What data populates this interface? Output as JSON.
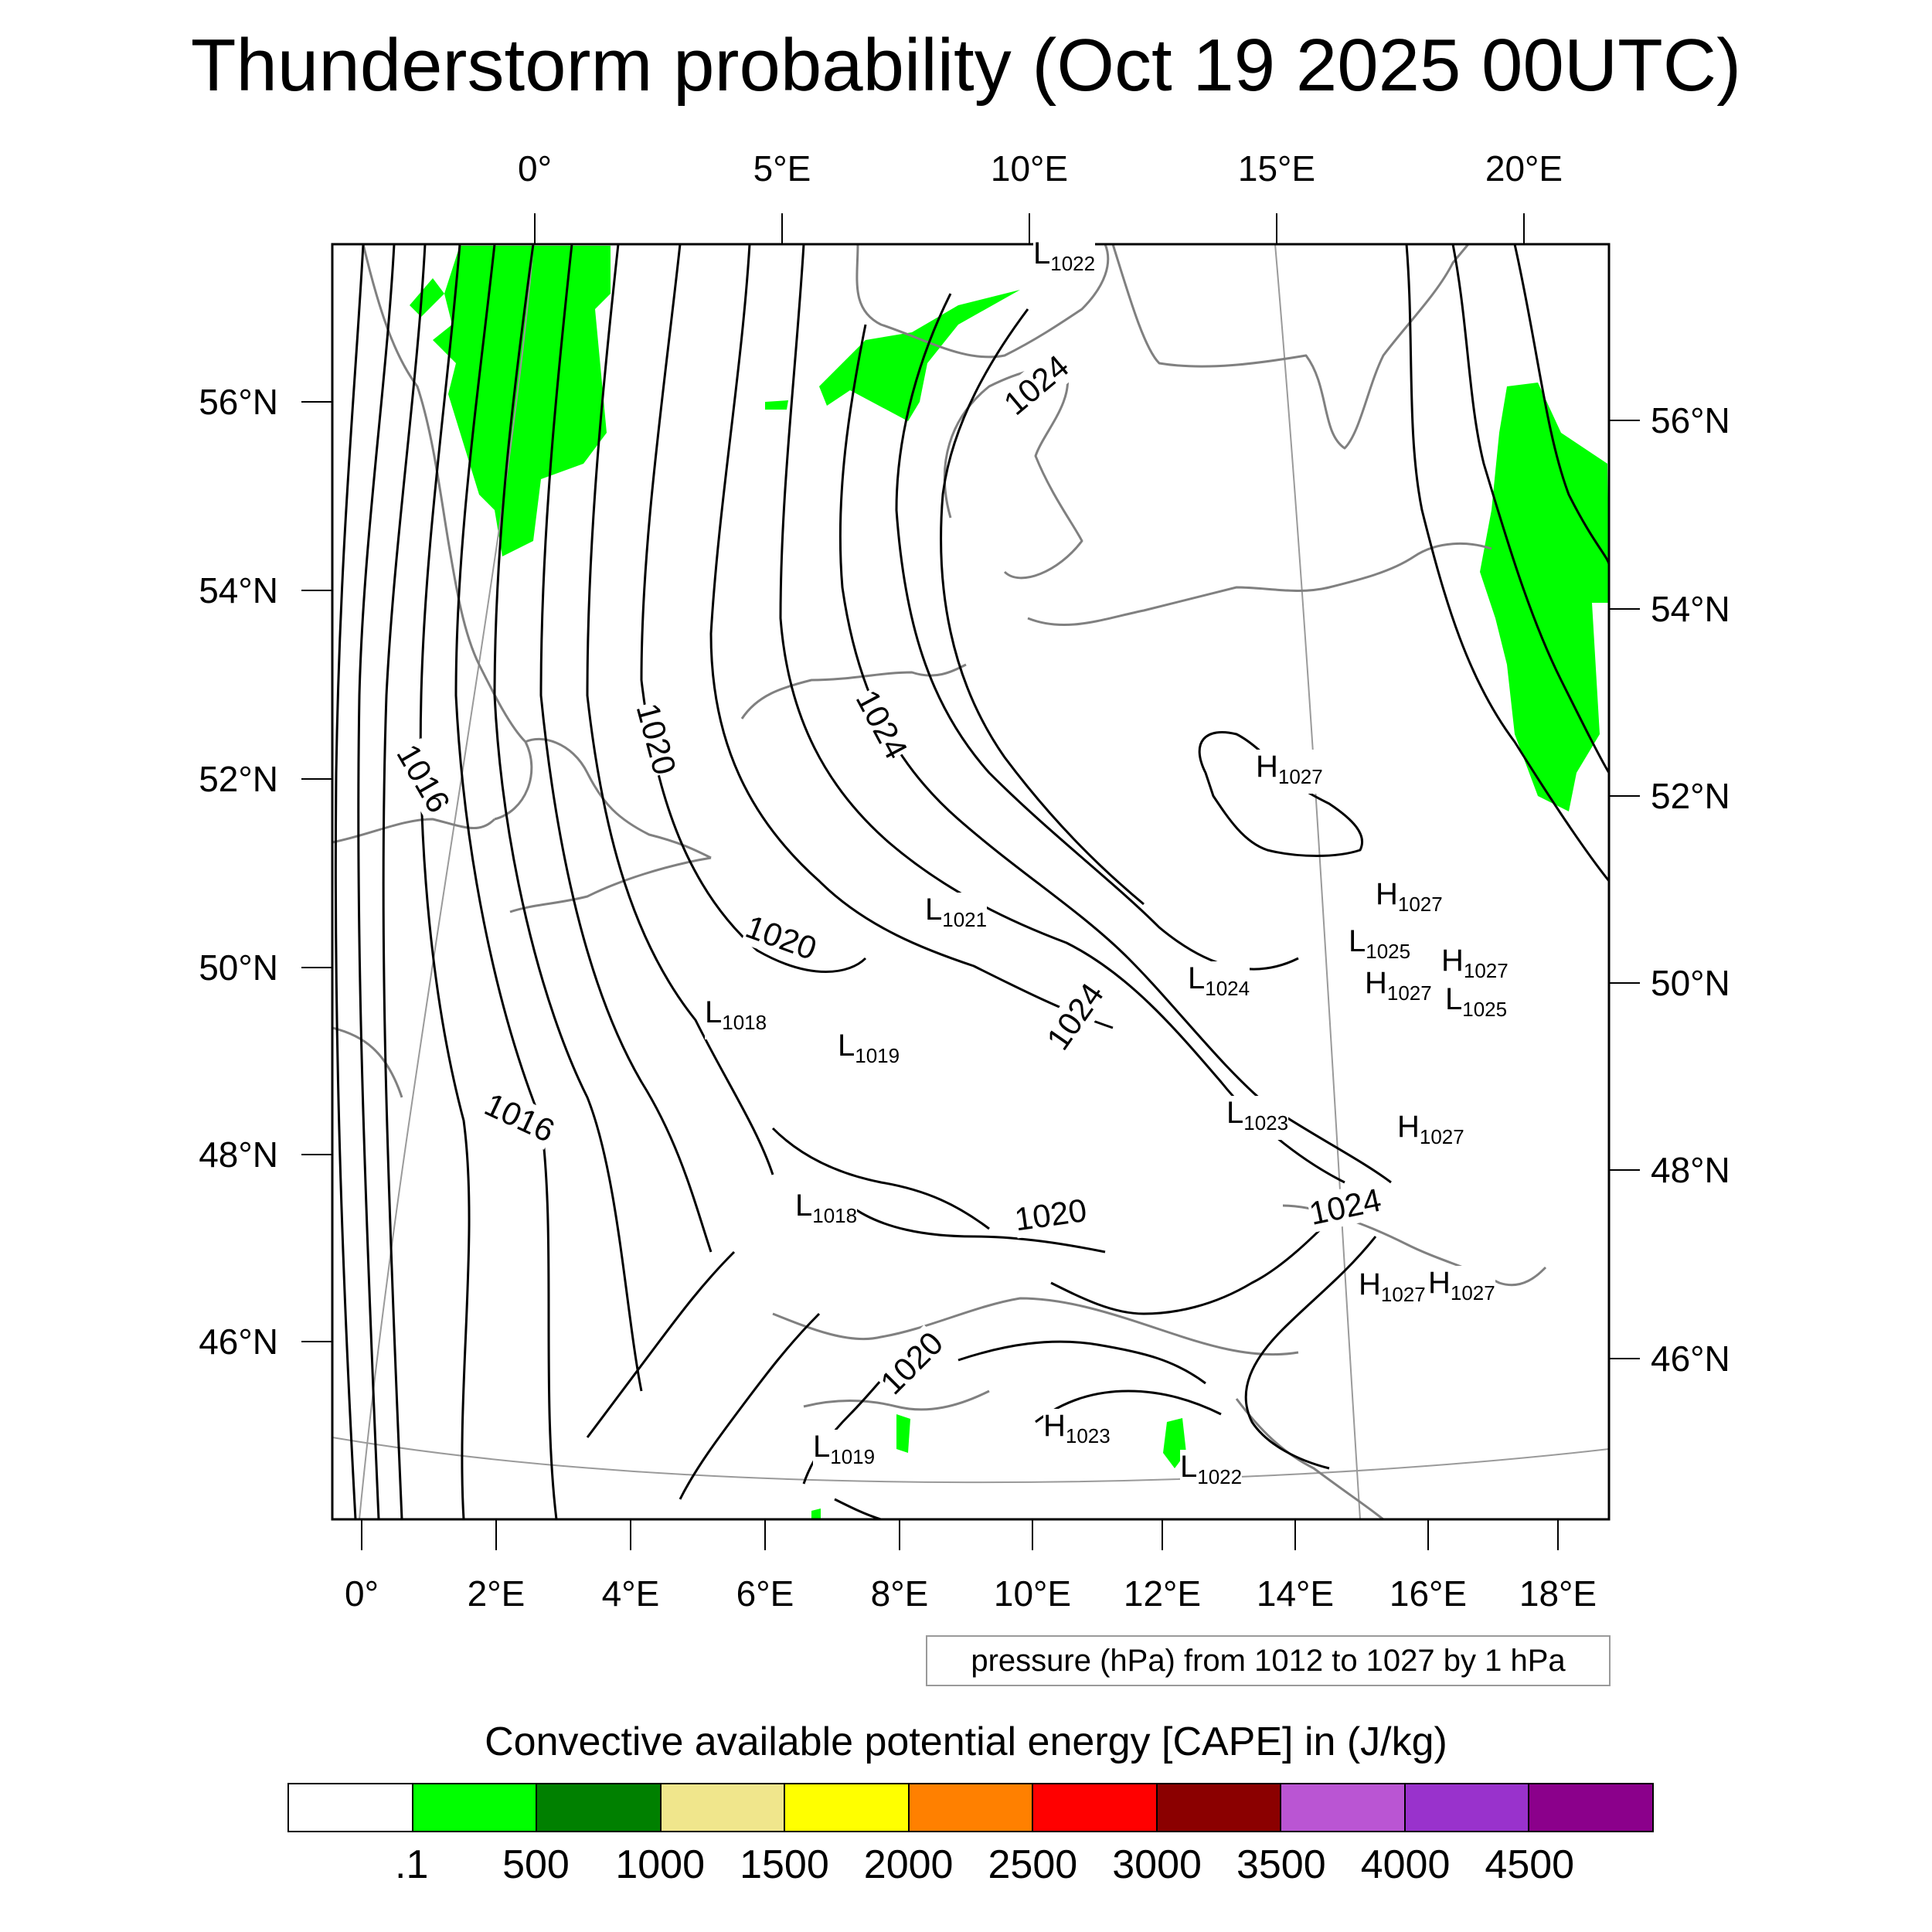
{
  "title": "Thunderstorm probability (Oct 19 2025 00UTC)",
  "map": {
    "top_longitude_labels": [
      "0°",
      "5°E",
      "10°E",
      "15°E",
      "20°E"
    ],
    "bottom_longitude_labels": [
      "0°",
      "2°E",
      "4°E",
      "6°E",
      "8°E",
      "10°E",
      "12°E",
      "14°E",
      "16°E",
      "18°E"
    ],
    "left_latitude_labels": [
      "56°N",
      "54°N",
      "52°N",
      "50°N",
      "48°N",
      "46°N"
    ],
    "right_latitude_labels": [
      "56°N",
      "54°N",
      "52°N",
      "50°N",
      "48°N",
      "46°N"
    ],
    "isobar_labels": [
      "1016",
      "1016",
      "1020",
      "1020",
      "1020",
      "1020",
      "1024",
      "1024",
      "1024",
      "1024"
    ],
    "pressure_centers": [
      {
        "letter": "L",
        "value": "1022"
      },
      {
        "letter": "H",
        "value": "1027"
      },
      {
        "letter": "H",
        "value": "1027"
      },
      {
        "letter": "L",
        "value": "1025"
      },
      {
        "letter": "H",
        "value": "1027"
      },
      {
        "letter": "H",
        "value": "1027"
      },
      {
        "letter": "L",
        "value": "1025"
      },
      {
        "letter": "L",
        "value": "1021"
      },
      {
        "letter": "L",
        "value": "1024"
      },
      {
        "letter": "L",
        "value": "1018"
      },
      {
        "letter": "L",
        "value": "1019"
      },
      {
        "letter": "L",
        "value": "1023"
      },
      {
        "letter": "H",
        "value": "1027"
      },
      {
        "letter": "L",
        "value": "1018"
      },
      {
        "letter": "H",
        "value": "1027"
      },
      {
        "letter": "H",
        "value": "1027"
      },
      {
        "letter": "H",
        "value": "1023"
      },
      {
        "letter": "L",
        "value": "1019"
      },
      {
        "letter": "L",
        "value": "1022"
      }
    ],
    "caption": "pressure (hPa) from 1012 to 1027 by 1 hPa"
  },
  "colorbar": {
    "title": "Convective available potential energy [CAPE] in (J/kg)",
    "colors": [
      "#ffffff",
      "#00ff00",
      "#008000",
      "#f0e68c",
      "#ffff00",
      "#ff8000",
      "#ff0000",
      "#8b0000",
      "#ba55d3",
      "#9932cc",
      "#8b008b"
    ],
    "tick_labels": [
      ".1",
      "500",
      "1000",
      "1500",
      "2000",
      "2500",
      "3000",
      "3500",
      "4000",
      "4500"
    ]
  }
}
